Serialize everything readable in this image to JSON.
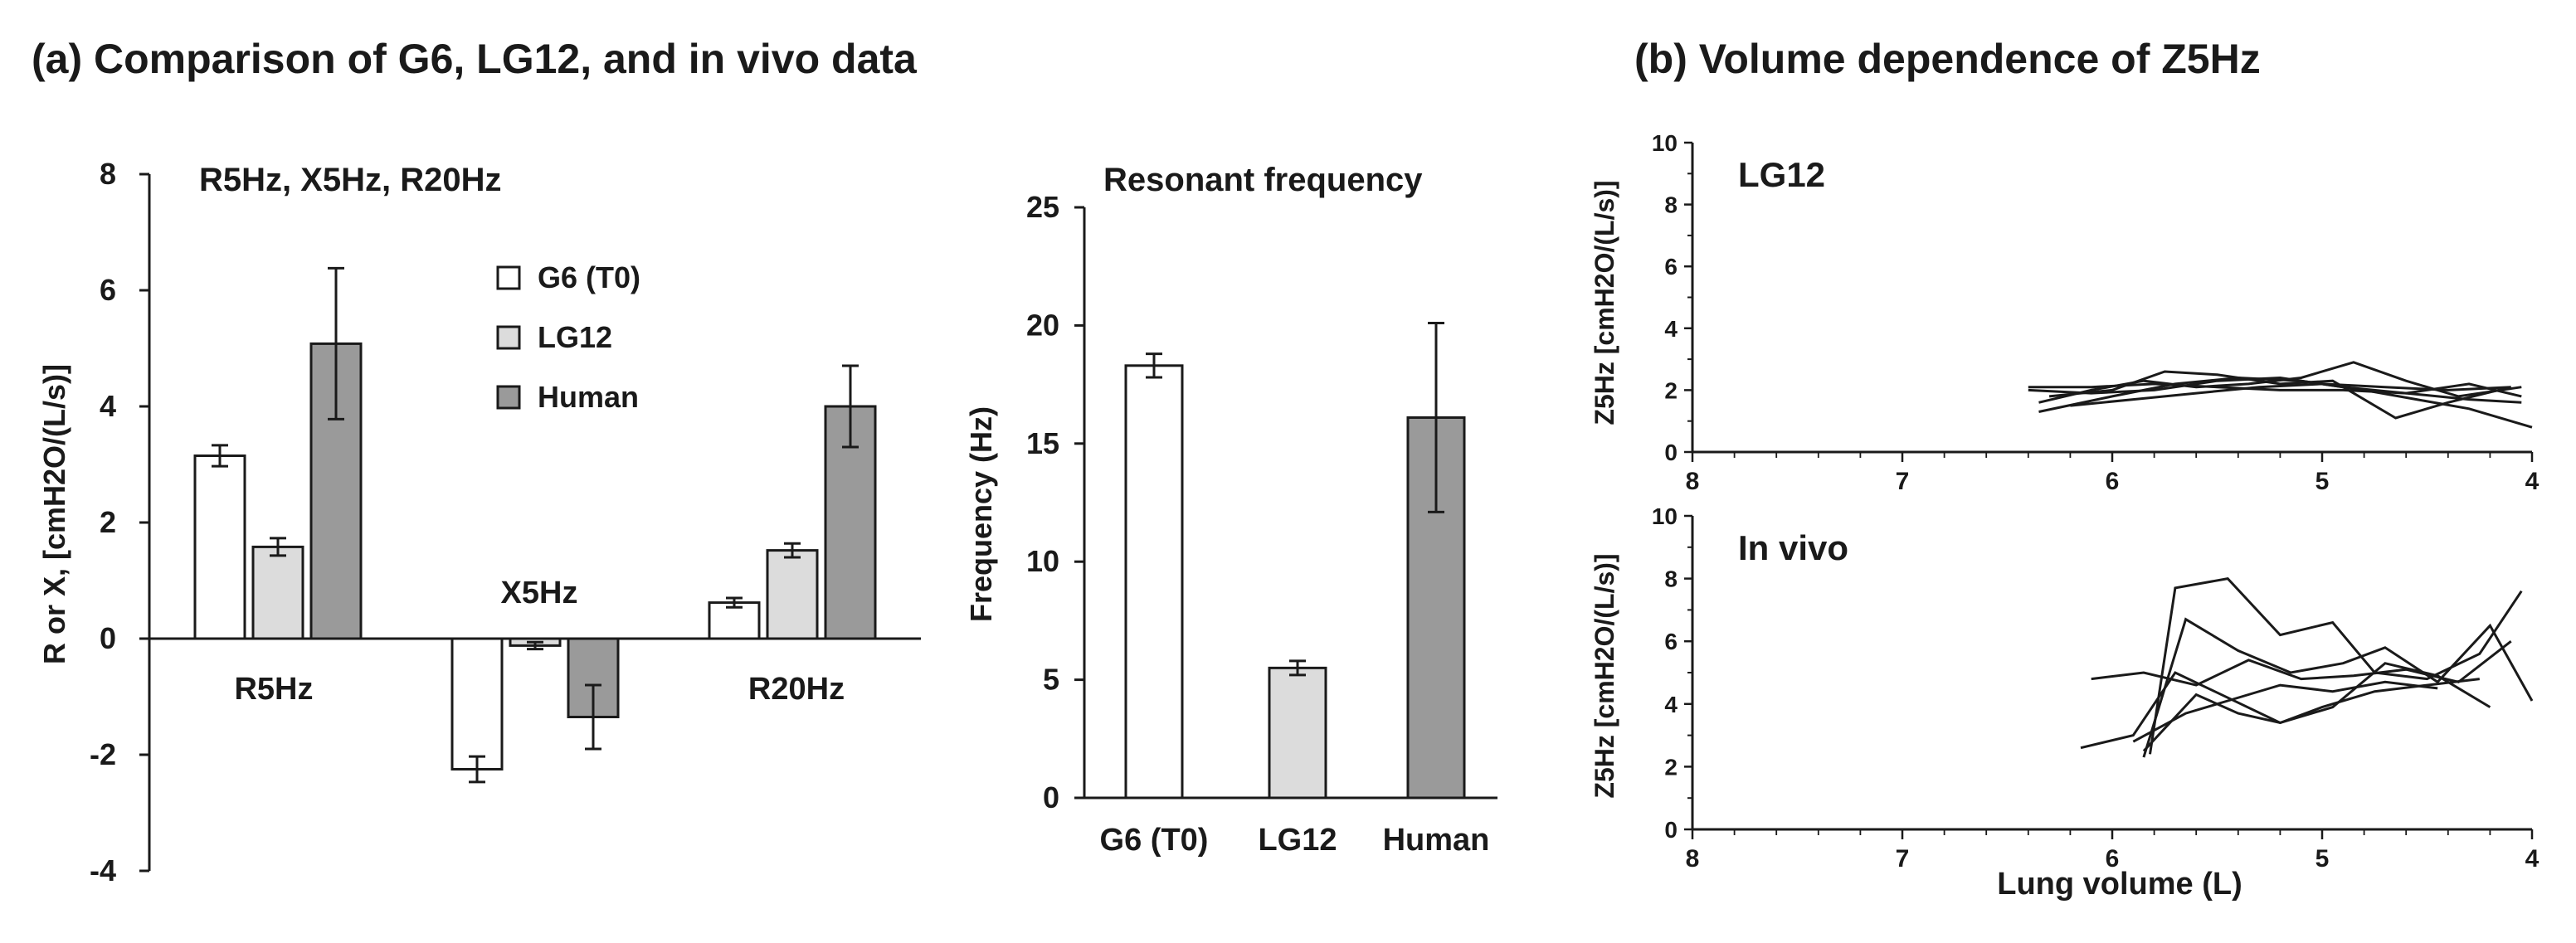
{
  "panel_a_title": "(a) Comparison of G6, LG12, and in vivo data",
  "panel_b_title": "(b) Volume dependence of Z5Hz",
  "colors": {
    "g6": "#ffffff",
    "lg12": "#dcdcdc",
    "human": "#9a9a9a",
    "stroke": "#1a1a1a"
  },
  "chart_data": [
    {
      "type": "bar",
      "title": "R5Hz, X5Hz, R20Hz",
      "ylabel": "R or X, [cmH2O/(L/s)]",
      "ylim": [
        -4,
        8
      ],
      "yticks": [
        "-4",
        "-2",
        "0",
        "2",
        "4",
        "6",
        "8"
      ],
      "categories": [
        "R5Hz",
        "X5Hz",
        "R20Hz"
      ],
      "series": [
        {
          "name": "G6 (T0)",
          "values": [
            3.15,
            -2.25,
            0.62
          ],
          "errors": [
            0.18,
            0.22,
            0.08
          ]
        },
        {
          "name": "LG12",
          "values": [
            1.58,
            -0.12,
            1.52
          ],
          "errors": [
            0.15,
            0.06,
            0.12
          ]
        },
        {
          "name": "Human",
          "values": [
            5.08,
            -1.35,
            4.0
          ],
          "errors": [
            1.3,
            0.55,
            0.7
          ]
        }
      ]
    },
    {
      "type": "bar",
      "title": "Resonant frequency",
      "ylabel": "Frequency (Hz)",
      "ylim": [
        0,
        25
      ],
      "yticks": [
        "0",
        "5",
        "10",
        "15",
        "20",
        "25"
      ],
      "categories": [
        "G6 (T0)",
        "LG12",
        "Human"
      ],
      "values": [
        18.3,
        5.5,
        16.1
      ],
      "errors": [
        0.5,
        0.3,
        4.0
      ]
    },
    {
      "type": "line",
      "inset_label": "LG12",
      "ylabel": "Z5Hz [cmH2O/(L/s)]",
      "xlim": [
        8,
        4
      ],
      "ylim": [
        0,
        10
      ],
      "xticks": [
        "8",
        "7",
        "6",
        "5",
        "4"
      ],
      "yticks": [
        "0",
        "2",
        "4",
        "6",
        "8",
        "10"
      ],
      "series": [
        {
          "x": [
            6.35,
            6.1,
            5.85,
            5.6,
            5.35,
            5.1,
            4.85,
            4.6,
            4.35,
            4.05
          ],
          "y": [
            1.6,
            2.0,
            2.3,
            2.1,
            2.2,
            2.4,
            2.9,
            2.3,
            1.8,
            2.1
          ]
        },
        {
          "x": [
            6.4,
            6.1,
            5.8,
            5.5,
            5.2,
            4.9,
            4.6,
            4.3,
            4.05
          ],
          "y": [
            2.1,
            2.1,
            2.2,
            2.1,
            2.0,
            2.0,
            1.9,
            1.7,
            1.6
          ]
        },
        {
          "x": [
            6.35,
            6.0,
            5.7,
            5.4,
            5.1,
            4.8,
            4.55,
            4.3,
            4.0
          ],
          "y": [
            1.3,
            1.8,
            2.2,
            2.4,
            2.3,
            2.0,
            1.7,
            1.4,
            0.8
          ]
        },
        {
          "x": [
            6.3,
            6.0,
            5.75,
            5.5,
            5.2,
            4.95,
            4.65,
            4.4,
            4.1
          ],
          "y": [
            1.8,
            2.0,
            2.6,
            2.5,
            2.2,
            2.3,
            1.1,
            1.6,
            2.1
          ]
        },
        {
          "x": [
            6.4,
            6.1,
            5.8,
            5.5,
            5.2,
            4.9,
            4.6,
            4.3,
            4.05
          ],
          "y": [
            2.0,
            1.9,
            2.0,
            2.3,
            2.4,
            2.1,
            1.9,
            2.2,
            1.8
          ]
        },
        {
          "x": [
            6.2,
            5.9,
            5.6,
            5.3,
            5.0,
            4.7,
            4.4,
            4.1
          ],
          "y": [
            1.5,
            1.7,
            1.9,
            2.1,
            2.2,
            2.1,
            2.0,
            2.1
          ]
        }
      ]
    },
    {
      "type": "line",
      "inset_label": "In vivo",
      "ylabel": "Z5Hz [cmH2O/(L/s)]",
      "xlabel": "Lung volume (L)",
      "xlim": [
        8,
        4
      ],
      "ylim": [
        0,
        10
      ],
      "xticks": [
        "8",
        "7",
        "6",
        "5",
        "4"
      ],
      "yticks": [
        "0",
        "2",
        "4",
        "6",
        "8",
        "10"
      ],
      "series": [
        {
          "x": [
            5.82,
            5.7,
            5.45,
            5.2,
            4.95,
            4.75,
            4.5,
            4.25,
            4.05
          ],
          "y": [
            2.4,
            7.7,
            8.0,
            6.2,
            6.6,
            5.0,
            4.8,
            5.6,
            7.6
          ]
        },
        {
          "x": [
            5.85,
            5.65,
            5.4,
            5.15,
            4.9,
            4.7,
            4.45,
            4.2,
            4.0
          ],
          "y": [
            2.3,
            6.7,
            5.7,
            5.0,
            5.3,
            5.8,
            4.7,
            6.5,
            4.1
          ]
        },
        {
          "x": [
            6.15,
            5.9,
            5.7,
            5.45,
            5.2,
            5.0,
            4.75,
            4.5,
            4.25
          ],
          "y": [
            2.6,
            3.0,
            5.0,
            4.2,
            3.4,
            3.9,
            4.4,
            4.6,
            4.8
          ]
        },
        {
          "x": [
            6.1,
            5.85,
            5.6,
            5.35,
            5.1,
            4.85,
            4.6,
            4.35,
            4.1
          ],
          "y": [
            4.8,
            5.0,
            4.6,
            5.4,
            4.8,
            4.9,
            5.1,
            4.7,
            6.0
          ]
        },
        {
          "x": [
            5.85,
            5.6,
            5.4,
            5.2,
            4.95,
            4.7,
            4.45,
            4.2
          ],
          "y": [
            2.5,
            4.3,
            3.7,
            3.4,
            3.9,
            5.3,
            4.9,
            3.9
          ]
        },
        {
          "x": [
            5.9,
            5.65,
            5.45,
            5.2,
            4.95,
            4.7,
            4.45
          ],
          "y": [
            2.8,
            3.7,
            4.1,
            4.6,
            4.4,
            4.7,
            4.5
          ]
        }
      ]
    }
  ]
}
